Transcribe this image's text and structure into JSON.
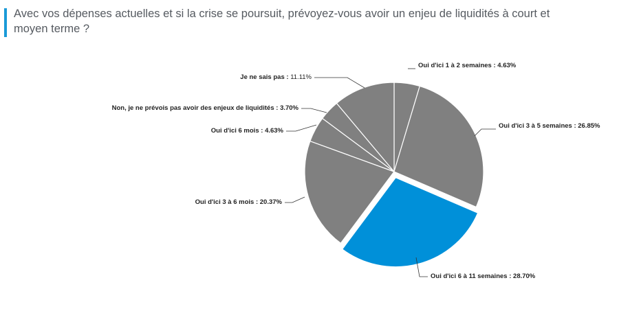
{
  "title": "Avec vos dépenses actuelles et si la crise se poursuit, prévoyez-vous avoir un enjeu de liquidités à court et moyen terme ?",
  "colors": {
    "accent": "#1a9ad8",
    "slice": "#808080",
    "highlight": "#0090d9",
    "stroke": "#ffffff",
    "leader": "#333333"
  },
  "chart_data": {
    "type": "pie",
    "title": "Avec vos dépenses actuelles et si la crise se poursuit, prévoyez-vous avoir un enjeu de liquidités à court et moyen terme ?",
    "slices": [
      {
        "name": "Oui d'ici 1 à 2 semaines",
        "value": 4.63,
        "label": "4.63%"
      },
      {
        "name": "Oui d'ici 3 à 5 semaines",
        "value": 26.85,
        "label": "26.85%"
      },
      {
        "name": "Oui d'ici 6 à 11 semaines",
        "value": 28.7,
        "label": "28.70%",
        "highlighted": true
      },
      {
        "name": "Oui d'ici 3 à 6 mois",
        "value": 20.37,
        "label": "20.37%"
      },
      {
        "name": "Oui d'ici 6 mois ",
        "value": 4.63,
        "label": "4.63%"
      },
      {
        "name": "Non, je ne prévois pas avoir des enjeux de liquidités",
        "value": 3.7,
        "label": "3.70%"
      },
      {
        "name": "Je ne sais pas",
        "value": 11.11,
        "label": "11.11%"
      }
    ],
    "legend": "none",
    "data_labels": "outside-with-leaders"
  }
}
